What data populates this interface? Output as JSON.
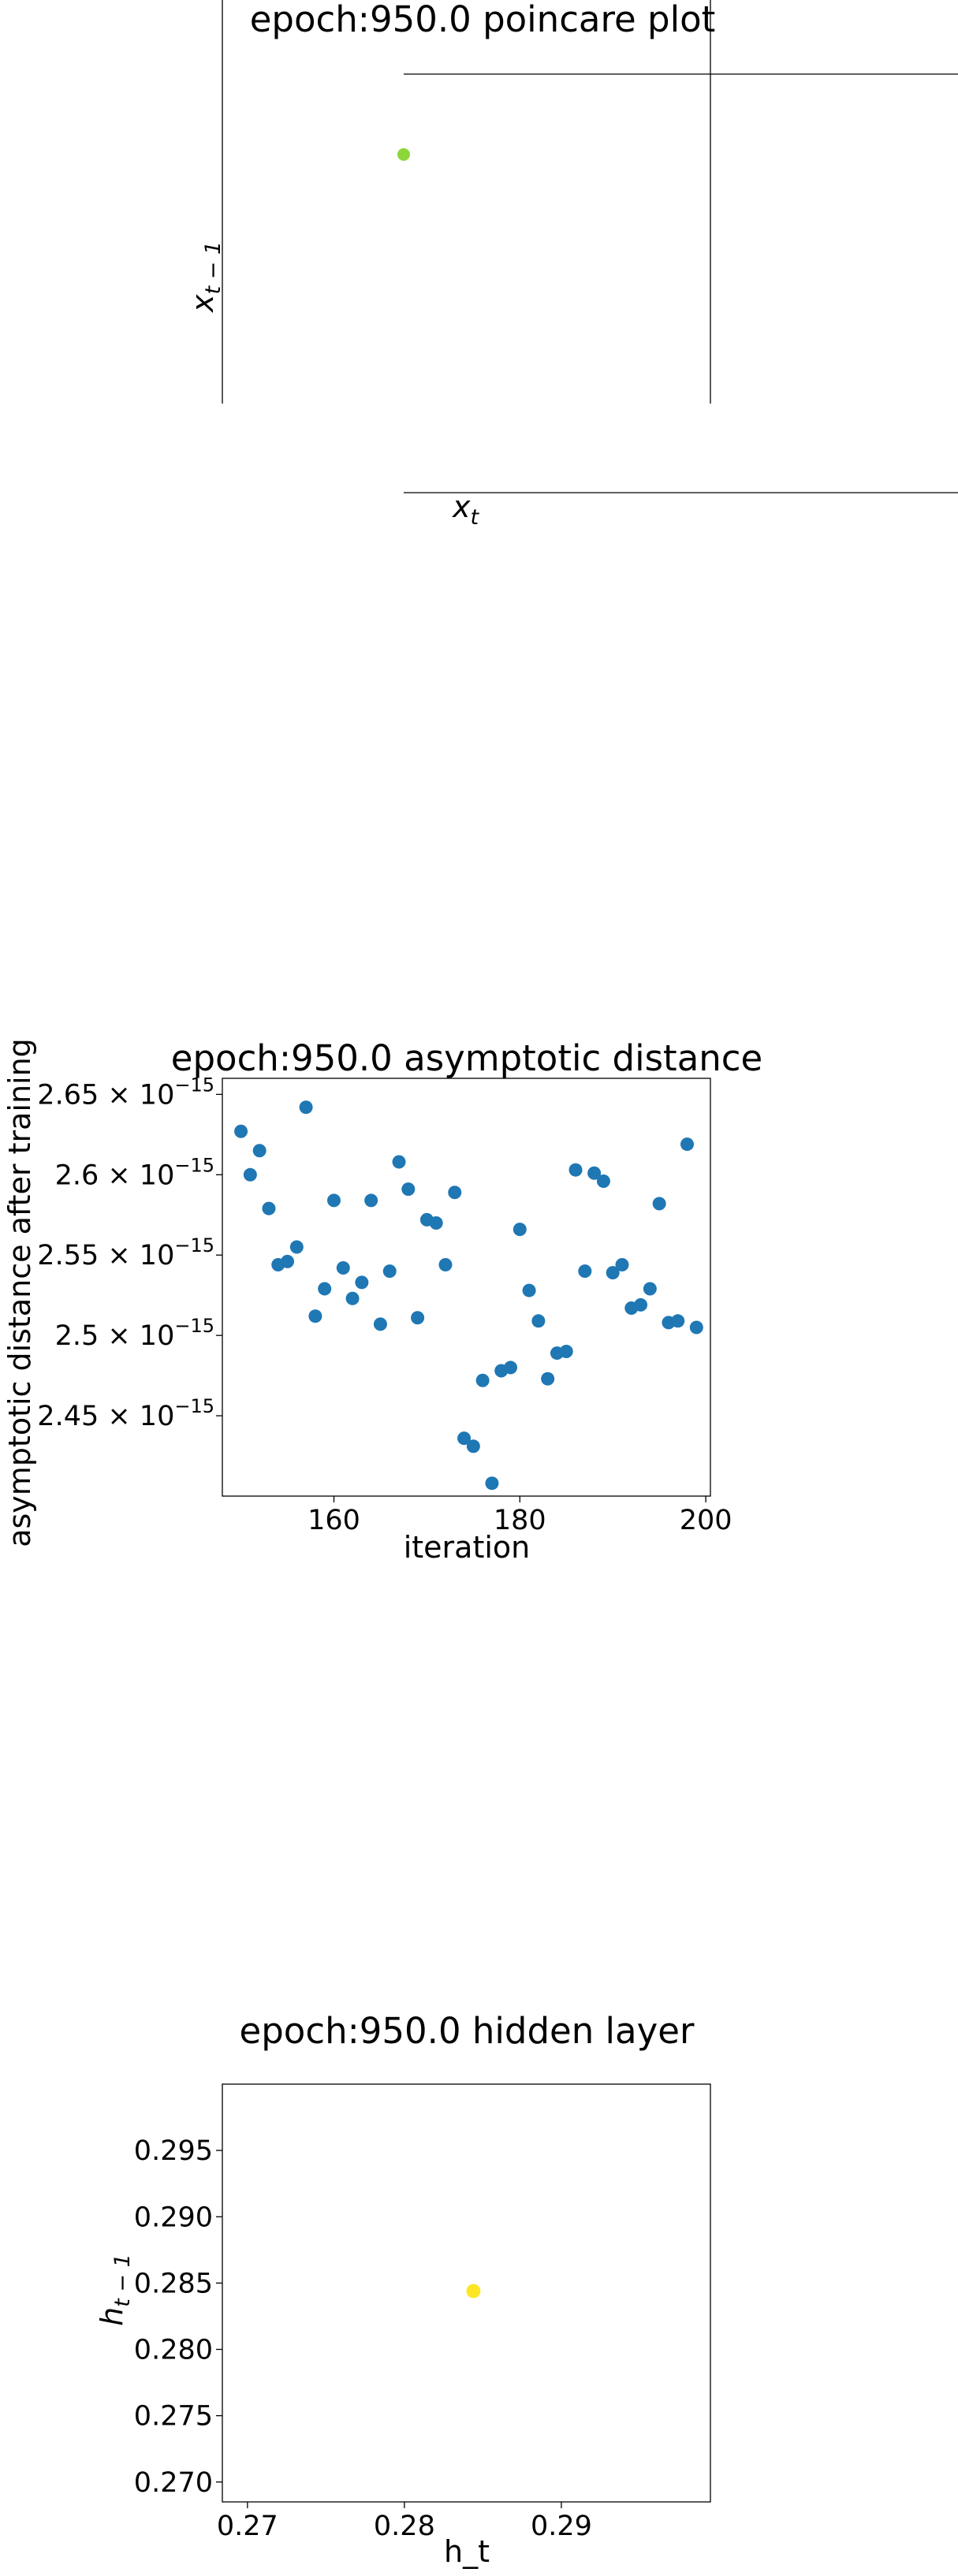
{
  "chart_data": [
    {
      "type": "scatter",
      "title": "epoch:950.0 poincare plot",
      "xlabel": "x_t",
      "ylabel": "x_{t-1}",
      "point_color": "#8cd63a",
      "series": [
        {
          "x": [
            0.0
          ],
          "y": [
            0.0
          ]
        }
      ]
    },
    {
      "type": "scatter",
      "title": "epoch:950.0 asymptotic distance",
      "xlabel": "iteration",
      "ylabel": "asymptotic distance after training",
      "xlim": [
        148,
        200.5
      ],
      "ylim": [
        2.4,
        2.66
      ],
      "y_unit": "×10^-15",
      "x_ticks": [
        160,
        180,
        200
      ],
      "y_ticks": [
        {
          "value": 2.45,
          "label": "2.45",
          "exp": "−15"
        },
        {
          "value": 2.5,
          "label": "2.5",
          "exp": "−15"
        },
        {
          "value": 2.55,
          "label": "2.55",
          "exp": "−15"
        },
        {
          "value": 2.6,
          "label": "2.6",
          "exp": "−15"
        },
        {
          "value": 2.65,
          "label": "2.65",
          "exp": "−15"
        }
      ],
      "point_color": "#1f77b4",
      "series": [
        {
          "x": [
            150,
            151,
            152,
            153,
            154,
            155,
            156,
            157,
            158,
            159,
            160,
            161,
            162,
            163,
            164,
            165,
            166,
            167,
            168,
            169,
            170,
            171,
            172,
            173,
            174,
            175,
            176,
            177,
            178,
            179,
            180,
            181,
            182,
            183,
            184,
            185,
            186,
            187,
            188,
            189,
            190,
            191,
            192,
            193,
            194,
            195,
            196,
            197,
            198,
            199
          ],
          "y": [
            2.627,
            2.6,
            2.615,
            2.579,
            2.544,
            2.546,
            2.555,
            2.642,
            2.512,
            2.529,
            2.584,
            2.542,
            2.523,
            2.533,
            2.584,
            2.507,
            2.54,
            2.608,
            2.591,
            2.511,
            2.572,
            2.57,
            2.544,
            2.589,
            2.436,
            2.431,
            2.472,
            2.408,
            2.478,
            2.48,
            2.566,
            2.528,
            2.509,
            2.473,
            2.489,
            2.49,
            2.603,
            2.54,
            2.601,
            2.596,
            2.539,
            2.544,
            2.517,
            2.519,
            2.529,
            2.582,
            2.508,
            2.509,
            2.619,
            2.505
          ]
        }
      ]
    },
    {
      "type": "scatter",
      "title": "epoch:950.0 hidden layer",
      "xlabel": "h_t",
      "ylabel": "h_{t-1}",
      "xlim": [
        0.2684,
        0.2995
      ],
      "ylim": [
        0.2685,
        0.3
      ],
      "x_ticks": [
        0.27,
        0.28,
        0.29
      ],
      "y_ticks": [
        0.27,
        0.275,
        0.28,
        0.285,
        0.29,
        0.295
      ],
      "point_color": "#fde725",
      "series": [
        {
          "x": [
            0.2844
          ],
          "y": [
            0.2844
          ]
        }
      ]
    }
  ]
}
